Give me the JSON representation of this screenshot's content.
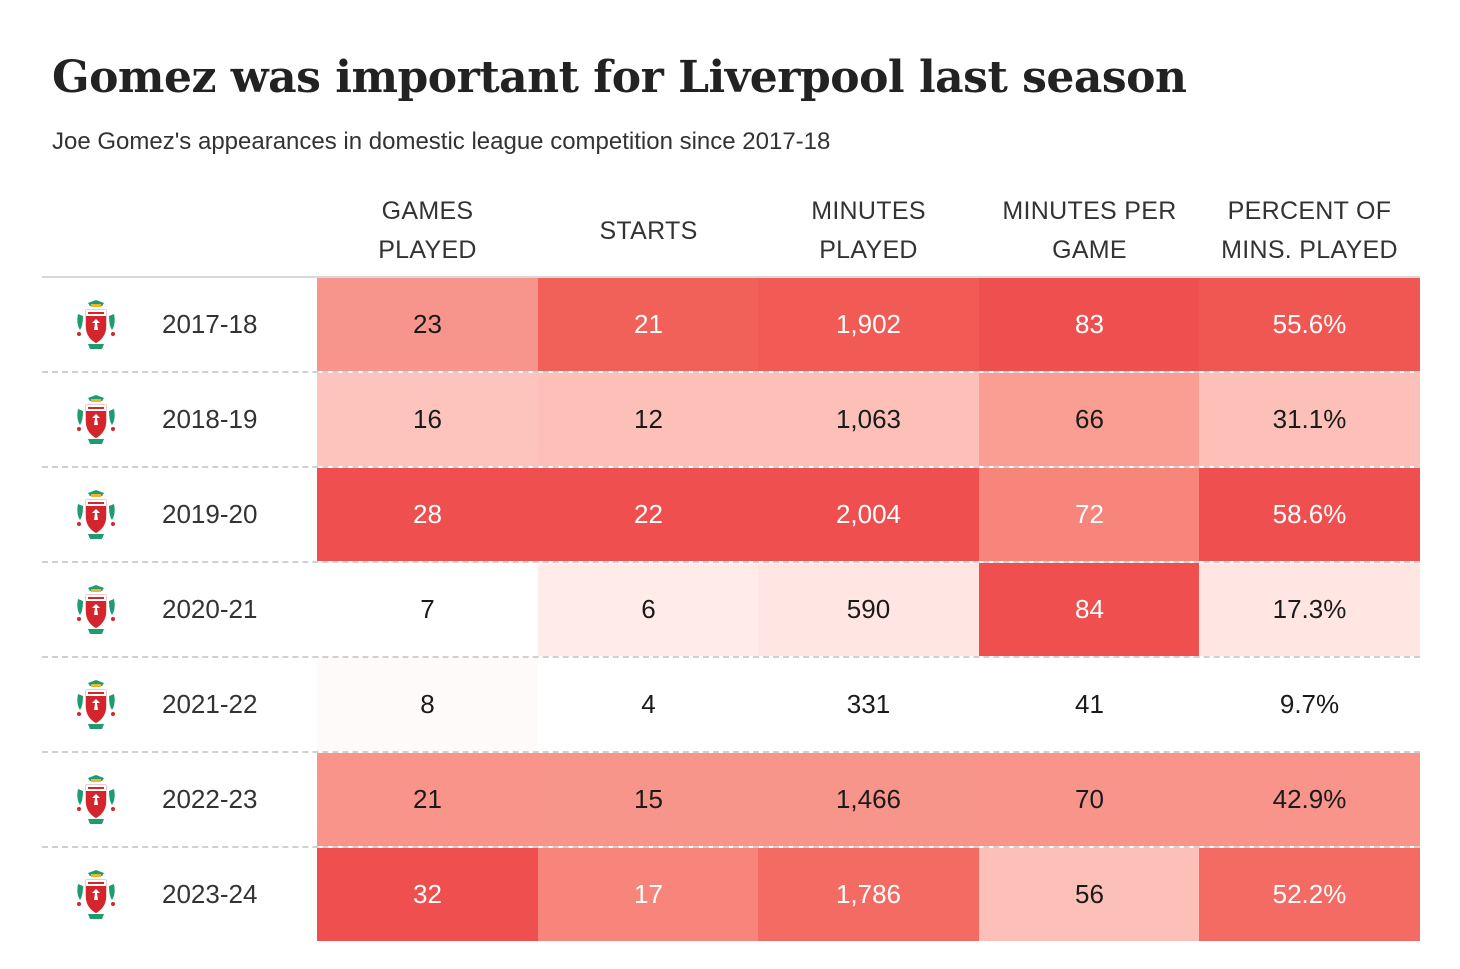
{
  "title": "Gomez was important for Liverpool last season",
  "subtitle": "Joe Gomez's appearances in domestic league competition since 2017-18",
  "chart_data": {
    "type": "table",
    "title": "Gomez was important for Liverpool last season",
    "subtitle": "Joe Gomez's appearances in domestic league competition since 2017-18",
    "columns": [
      "GAMES\nPLAYED",
      "STARTS",
      "MINUTES\nPLAYED",
      "MINUTES PER\nGAME",
      "PERCENT OF\nMINS. PLAYED"
    ],
    "rows": [
      {
        "season": "2017-18",
        "cells": [
          {
            "text": "23",
            "value": 23,
            "color": "#f7948b"
          },
          {
            "text": "21",
            "value": 21,
            "color": "#f2605a"
          },
          {
            "text": "1,902",
            "value": 1902,
            "color": "#f15a55"
          },
          {
            "text": "83",
            "value": 83,
            "color": "#ef4f4f"
          },
          {
            "text": "55.6%",
            "value": 55.6,
            "color": "#f05652"
          }
        ]
      },
      {
        "season": "2018-19",
        "cells": [
          {
            "text": "16",
            "value": 16,
            "color": "#fcc4bd"
          },
          {
            "text": "12",
            "value": 12,
            "color": "#fdc0b9"
          },
          {
            "text": "1,063",
            "value": 1063,
            "color": "#fdc0b9"
          },
          {
            "text": "66",
            "value": 66,
            "color": "#fa9d93"
          },
          {
            "text": "31.1%",
            "value": 31.1,
            "color": "#fdc0b9"
          }
        ]
      },
      {
        "season": "2019-20",
        "cells": [
          {
            "text": "28",
            "value": 28,
            "color": "#ef4f4f"
          },
          {
            "text": "22",
            "value": 22,
            "color": "#ef4f4f"
          },
          {
            "text": "2,004",
            "value": 2004,
            "color": "#ef4f4f"
          },
          {
            "text": "72",
            "value": 72,
            "color": "#f7857c"
          },
          {
            "text": "58.6%",
            "value": 58.6,
            "color": "#ef4f4f"
          }
        ]
      },
      {
        "season": "2020-21",
        "cells": [
          {
            "text": "7",
            "value": 7,
            "color": "#ffffff"
          },
          {
            "text": "6",
            "value": 6,
            "color": "#ffebe8"
          },
          {
            "text": "590",
            "value": 590,
            "color": "#ffe6e2"
          },
          {
            "text": "84",
            "value": 84,
            "color": "#ef4f4f"
          },
          {
            "text": "17.3%",
            "value": 17.3,
            "color": "#ffe6e2"
          }
        ]
      },
      {
        "season": "2021-22",
        "cells": [
          {
            "text": "8",
            "value": 8,
            "color": "#fffafa"
          },
          {
            "text": "4",
            "value": 4,
            "color": "#ffffff"
          },
          {
            "text": "331",
            "value": 331,
            "color": "#ffffff"
          },
          {
            "text": "41",
            "value": 41,
            "color": "#ffffff"
          },
          {
            "text": "9.7%",
            "value": 9.7,
            "color": "#ffffff"
          }
        ]
      },
      {
        "season": "2022-23",
        "cells": [
          {
            "text": "21",
            "value": 21,
            "color": "#f8948a"
          },
          {
            "text": "15",
            "value": 15,
            "color": "#f8958b"
          },
          {
            "text": "1,466",
            "value": 1466,
            "color": "#f8958b"
          },
          {
            "text": "70",
            "value": 70,
            "color": "#f8948a"
          },
          {
            "text": "42.9%",
            "value": 42.9,
            "color": "#f8948a"
          }
        ]
      },
      {
        "season": "2023-24",
        "cells": [
          {
            "text": "32",
            "value": 32,
            "color": "#ef4f4f"
          },
          {
            "text": "17",
            "value": 17,
            "color": "#f7857c"
          },
          {
            "text": "1,786",
            "value": 1786,
            "color": "#f36b63"
          },
          {
            "text": "56",
            "value": 56,
            "color": "#fdc0b9"
          },
          {
            "text": "52.2%",
            "value": 52.2,
            "color": "#f36b63"
          }
        ]
      }
    ]
  },
  "text_colors": {
    "dark": "#1a1a1a",
    "light": "#ffffff"
  },
  "crest_colors": {
    "red": "#d4242c",
    "green": "#1f9c6f",
    "gold": "#e8b830"
  }
}
